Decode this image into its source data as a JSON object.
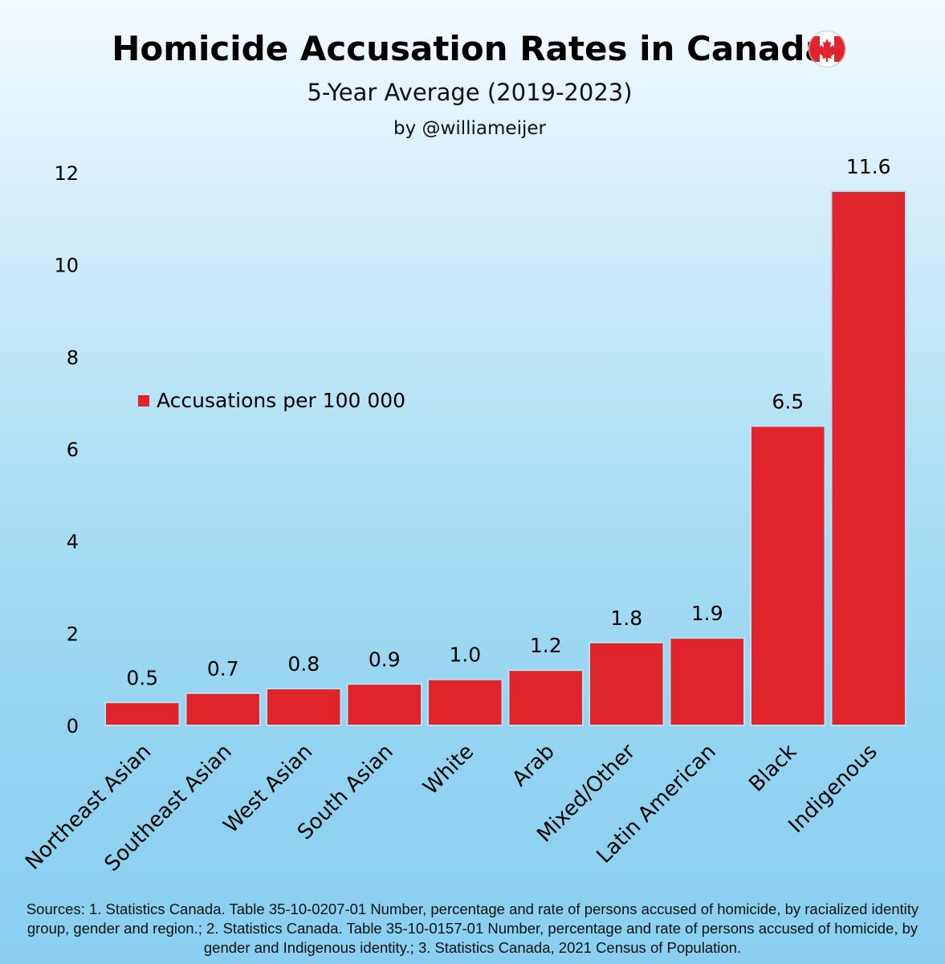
{
  "colors": {
    "bar": "#e0242b",
    "bar_edge": "#b9dff2"
  },
  "chart_data": {
    "type": "bar",
    "title": "Homicide Accusation Rates in Canada",
    "title_icon": "canada-flag-icon",
    "subtitle": "5-Year Average (2019-2023)",
    "credit": "by @williameijer",
    "xlabel": "",
    "ylabel": "",
    "ylim": [
      0,
      12
    ],
    "yticks": [
      0,
      2,
      4,
      6,
      8,
      10,
      12
    ],
    "grid": false,
    "legend": {
      "position": "left-middle",
      "entries": [
        "Accusations per 100 000"
      ]
    },
    "categories": [
      "Northeast Asian",
      "Southeast Asian",
      "West Asian",
      "South Asian",
      "White",
      "Arab",
      "Mixed/Other",
      "Latin American",
      "Black",
      "Indigenous"
    ],
    "series": [
      {
        "name": "Accusations per 100 000",
        "values": [
          0.5,
          0.7,
          0.8,
          0.9,
          1.0,
          1.2,
          1.8,
          1.9,
          6.5,
          11.6
        ],
        "labels": [
          "0.5",
          "0.7",
          "0.8",
          "0.9",
          "1.0",
          "1.2",
          "1.8",
          "1.9",
          "6.5",
          "11.6"
        ]
      }
    ]
  },
  "sources": "Sources: 1. Statistics Canada. Table 35-10-0207-01  Number, percentage and rate of persons accused of homicide, by racialized identity group, gender and region.; 2. Statistics Canada. Table 35-10-0157-01  Number, percentage and rate of persons accused of homicide, by gender and Indigenous identity.; 3. Statistics Canada, 2021 Census of Population."
}
